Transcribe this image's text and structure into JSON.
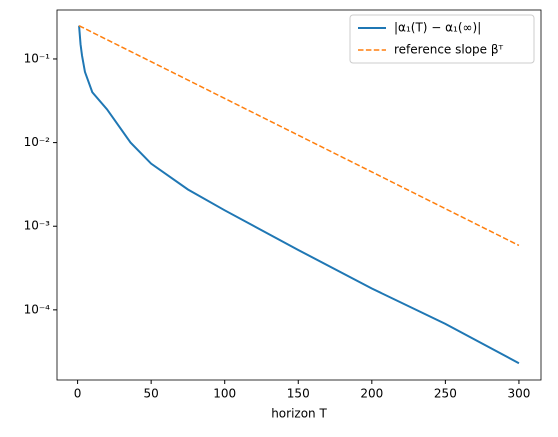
{
  "chart_data": {
    "type": "line",
    "x_label": "horizon T",
    "x": [
      1,
      2,
      3,
      5,
      10,
      20,
      36,
      50,
      75,
      100,
      150,
      200,
      250,
      300
    ],
    "series": [
      {
        "name": "|α₁(T) − α₁(∞)|",
        "color": "#1f77b4",
        "dash": false,
        "values": [
          0.25,
          0.15,
          0.11,
          0.07,
          0.04,
          0.025,
          0.01,
          0.0056,
          0.00275,
          0.00155,
          0.00052,
          0.00018,
          6.8e-05,
          2.3e-05
        ]
      },
      {
        "name": "reference slope βᵀ",
        "color": "#ff7f0e",
        "dash": true,
        "values": [
          0.25,
          0.245,
          0.24,
          0.231,
          0.208,
          0.17,
          0.123,
          0.0927,
          0.056,
          0.0337,
          0.01226,
          0.00446,
          0.00162,
          0.000589
        ]
      }
    ],
    "xlim": [
      -14,
      315
    ],
    "xticks": [
      0,
      50,
      100,
      150,
      200,
      250,
      300
    ],
    "ylim": [
      1.45e-05,
      0.385
    ],
    "log_y": true,
    "yticks": [
      {
        "value": 0.1,
        "label": "10⁻¹"
      },
      {
        "value": 0.01,
        "label": "10⁻²"
      },
      {
        "value": 0.001,
        "label": "10⁻³"
      },
      {
        "value": 0.0001,
        "label": "10⁻⁴"
      }
    ],
    "legend": "upper right"
  }
}
